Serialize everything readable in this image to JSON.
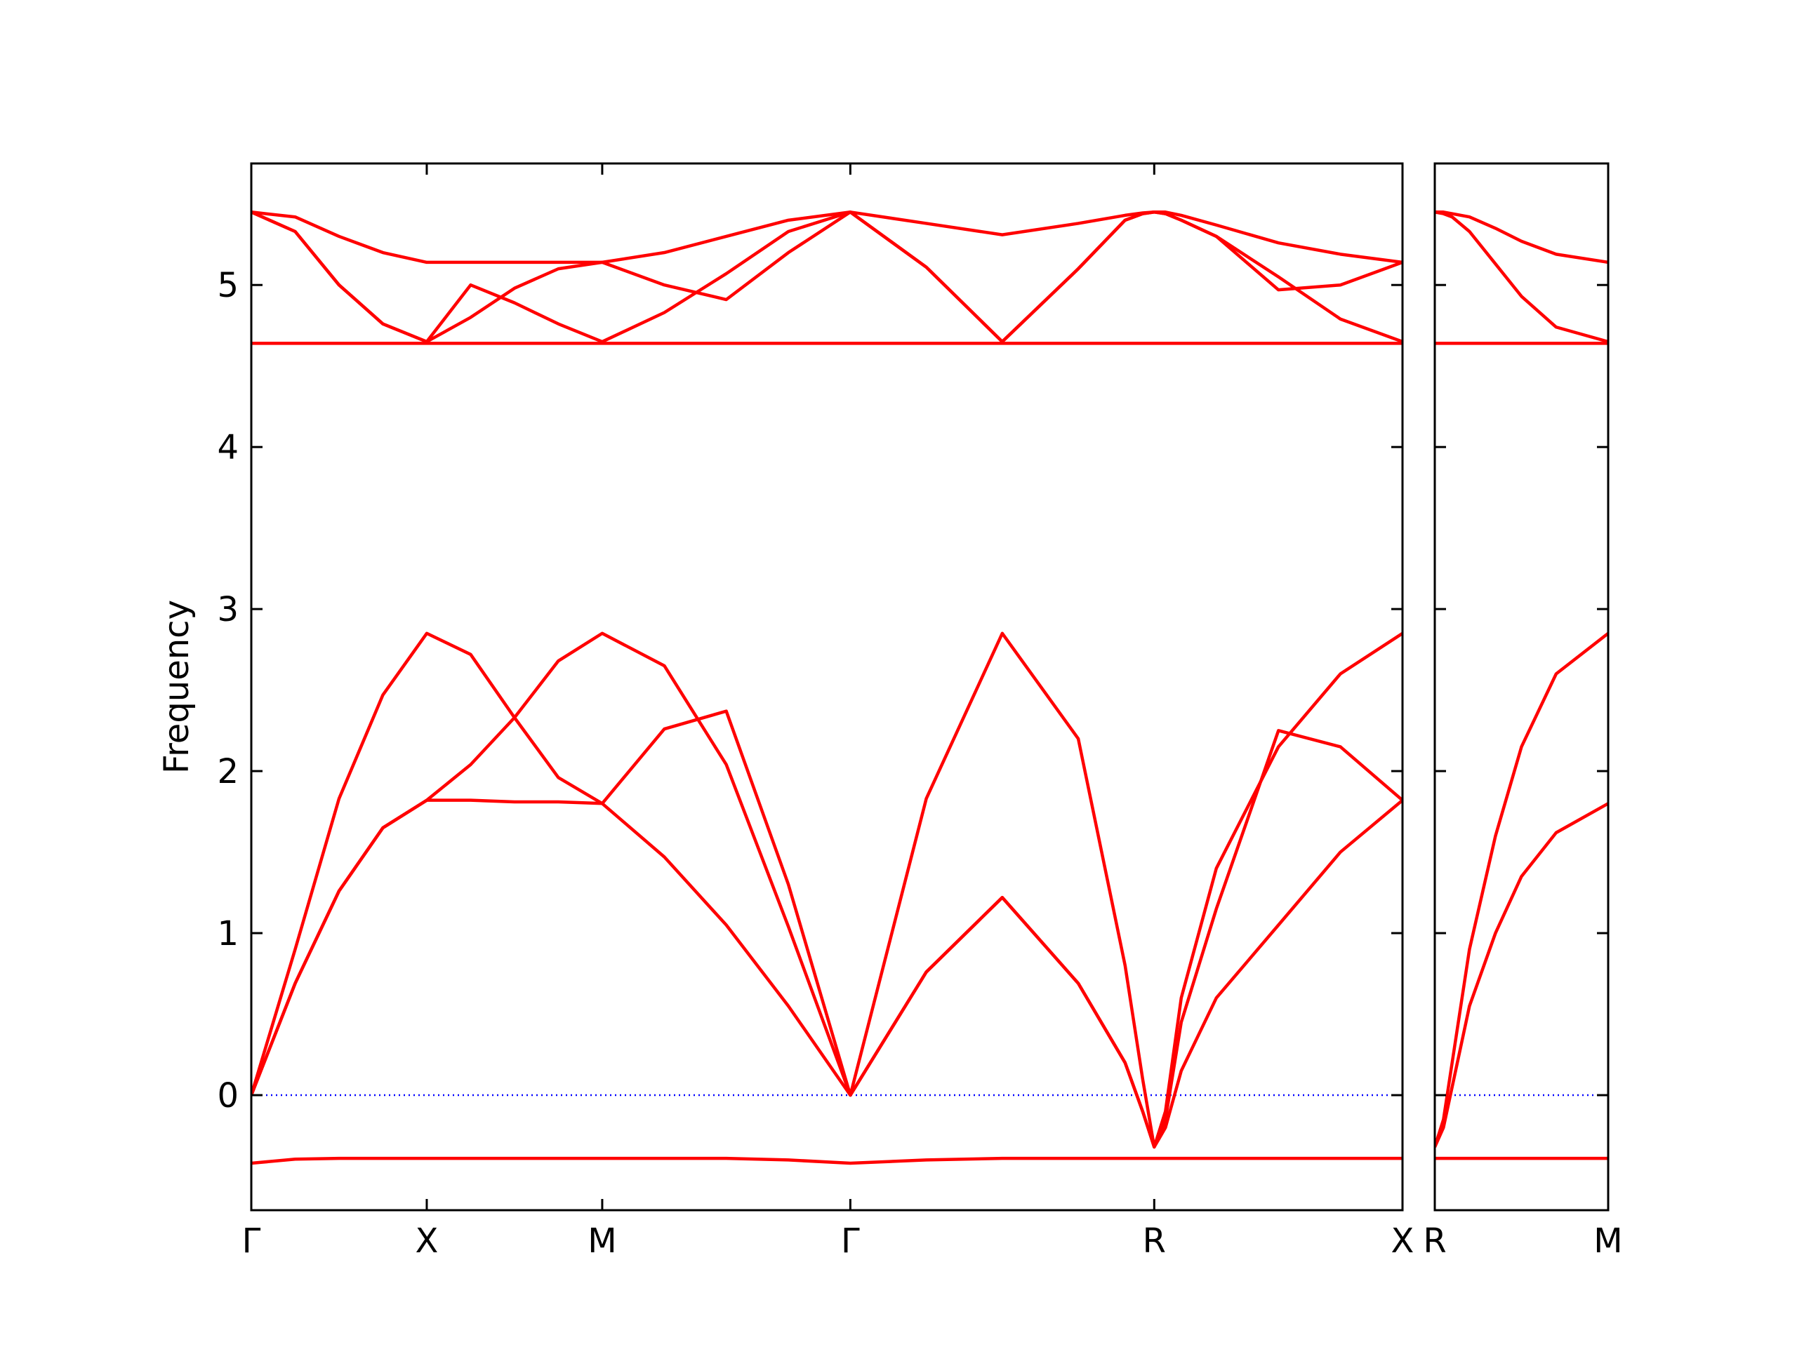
{
  "chart_data": [
    {
      "type": "line",
      "ylabel": "Frequency",
      "xlim": [
        0,
        6.561
      ],
      "ylim": [
        -0.71,
        5.75
      ],
      "xticks": [
        {
          "value": 0,
          "label": "Γ"
        },
        {
          "value": 1,
          "label": "X"
        },
        {
          "value": 2,
          "label": "M"
        },
        {
          "value": 3.414,
          "label": "Γ"
        },
        {
          "value": 5.146,
          "label": "R"
        },
        {
          "value": 6.561,
          "label": "X"
        }
      ],
      "yticks": [
        0,
        1,
        2,
        3,
        4,
        5
      ],
      "show_ytick_labels": true,
      "zero_line_color": "#0000ff",
      "x": [
        0,
        0.25,
        0.5,
        0.75,
        1,
        1.25,
        1.5,
        1.75,
        2,
        2.354,
        2.707,
        3.061,
        3.414,
        3.847,
        4.28,
        4.713,
        4.98,
        5.08,
        5.146,
        5.21,
        5.3,
        5.5,
        5.854,
        6.207,
        6.561
      ],
      "series": [
        {
          "color": "#ff0000",
          "values": [
            0,
            0.69,
            1.26,
            1.65,
            1.82,
            1.82,
            1.81,
            1.81,
            1.8,
            1.47,
            1.05,
            0.55,
            0,
            0.76,
            1.22,
            0.69,
            0.2,
            -0.1,
            -0.32,
            -0.2,
            0.15,
            0.6,
            1.05,
            1.5,
            1.82
          ]
        },
        {
          "color": "#ff0000",
          "values": [
            0,
            0.9,
            1.83,
            2.47,
            2.85,
            2.72,
            2.33,
            1.96,
            1.8,
            2.26,
            2.37,
            1.3,
            0,
            1.83,
            2.85,
            2.2,
            0.8,
            0.1,
            -0.32,
            -0.1,
            0.6,
            1.4,
            2.15,
            2.6,
            2.85
          ]
        },
        {
          "color": "#ff0000",
          "values": [
            0,
            0.69,
            1.26,
            1.65,
            1.82,
            2.04,
            2.33,
            2.68,
            2.85,
            2.65,
            2.04,
            1.04,
            0,
            0.76,
            1.22,
            0.69,
            0.2,
            -0.1,
            -0.32,
            -0.15,
            0.45,
            1.15,
            2.25,
            2.15,
            1.82
          ]
        },
        {
          "color": "#ff0000",
          "values": [
            -0.42,
            -0.395,
            -0.39,
            -0.39,
            -0.39,
            -0.39,
            -0.39,
            -0.39,
            -0.39,
            -0.39,
            -0.39,
            -0.4,
            -0.42,
            -0.4,
            -0.39,
            -0.39,
            -0.39,
            -0.39,
            -0.39,
            -0.39,
            -0.39,
            -0.39,
            -0.39,
            -0.39,
            -0.39
          ]
        },
        {
          "color": "#ff0000",
          "values": [
            5.45,
            5.33,
            5.0,
            4.76,
            4.65,
            4.8,
            4.98,
            5.1,
            5.14,
            5.0,
            4.91,
            5.2,
            5.45,
            5.11,
            4.65,
            5.1,
            5.4,
            5.44,
            5.45,
            5.44,
            5.4,
            5.3,
            4.97,
            5.0,
            5.14
          ]
        },
        {
          "color": "#ff0000",
          "values": [
            5.45,
            5.42,
            5.3,
            5.2,
            5.14,
            5.14,
            5.14,
            5.14,
            5.14,
            5.2,
            5.3,
            5.4,
            5.45,
            5.38,
            5.31,
            5.38,
            5.43,
            5.445,
            5.45,
            5.45,
            5.43,
            5.37,
            5.26,
            5.19,
            5.14
          ]
        },
        {
          "color": "#ff0000",
          "values": [
            5.45,
            5.33,
            5.0,
            4.76,
            4.65,
            5.0,
            4.89,
            4.76,
            4.65,
            4.83,
            5.07,
            5.33,
            5.45,
            5.11,
            4.65,
            5.1,
            5.4,
            5.44,
            5.45,
            5.44,
            5.4,
            5.3,
            5.05,
            4.79,
            4.65
          ]
        },
        {
          "color": "#ff0000",
          "values": [
            4.64,
            4.64,
            4.64,
            4.64,
            4.64,
            4.64,
            4.64,
            4.64,
            4.64,
            4.64,
            4.64,
            4.64,
            4.64,
            4.64,
            4.64,
            4.64,
            4.64,
            4.64,
            4.64,
            4.64,
            4.64,
            4.64,
            4.64,
            4.64,
            4.64
          ]
        }
      ]
    },
    {
      "type": "line",
      "xlim": [
        0,
        1
      ],
      "ylim": [
        -0.71,
        5.75
      ],
      "xticks": [
        {
          "value": 0,
          "label": "R"
        },
        {
          "value": 1,
          "label": "M"
        }
      ],
      "yticks": [
        0,
        1,
        2,
        3,
        4,
        5
      ],
      "show_ytick_labels": false,
      "zero_line_color": "#0000ff",
      "x": [
        0,
        0.05,
        0.1,
        0.2,
        0.35,
        0.5,
        0.7,
        1
      ],
      "series": [
        {
          "color": "#ff0000",
          "values": [
            -0.32,
            -0.15,
            0.2,
            0.9,
            1.6,
            2.15,
            2.6,
            2.85
          ]
        },
        {
          "color": "#ff0000",
          "values": [
            -0.32,
            -0.2,
            0.05,
            0.55,
            1.0,
            1.35,
            1.62,
            1.8
          ]
        },
        {
          "color": "#ff0000",
          "values": [
            -0.39,
            -0.39,
            -0.39,
            -0.39,
            -0.39,
            -0.39,
            -0.39,
            -0.39
          ]
        },
        {
          "color": "#ff0000",
          "values": [
            5.45,
            5.45,
            5.44,
            5.42,
            5.35,
            5.27,
            5.19,
            5.14
          ]
        },
        {
          "color": "#ff0000",
          "values": [
            5.45,
            5.44,
            5.42,
            5.33,
            5.13,
            4.93,
            4.74,
            4.65
          ]
        },
        {
          "color": "#ff0000",
          "values": [
            4.64,
            4.64,
            4.64,
            4.64,
            4.64,
            4.64,
            4.64,
            4.64
          ]
        }
      ]
    }
  ]
}
